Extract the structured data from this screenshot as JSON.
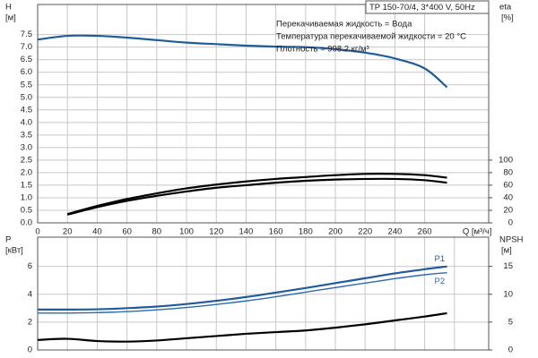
{
  "chart_data": [
    {
      "type": "line",
      "annotations": [
        "TP 150-70/4, 3*400 V, 50Hz",
        "Перекачиваемая жидкость = Вода",
        "Температура перекачиваемой жидкости = 20 °C",
        "Плотность = 998.2 кг/м³"
      ],
      "y_label": "H",
      "y_unit": "[м]",
      "y2_label": "eta",
      "y2_unit": "[%]",
      "x_label": "Q [м³/ч]",
      "x": [
        0,
        20,
        40,
        60,
        80,
        100,
        120,
        140,
        160,
        180,
        200,
        220,
        240,
        260,
        275
      ],
      "xlim": [
        0,
        303
      ],
      "xticks": [
        0,
        20,
        40,
        60,
        80,
        100,
        120,
        140,
        160,
        180,
        200,
        220,
        240,
        260
      ],
      "ylim": [
        0,
        8.7
      ],
      "yticks": [
        {
          "value": 0,
          "label": "0.0"
        },
        0.5,
        {
          "value": 1,
          "label": "1.0"
        },
        1.5,
        {
          "value": 2,
          "label": "2.0"
        },
        2.5,
        {
          "value": 3,
          "label": "3.0"
        },
        3.5,
        {
          "value": 4,
          "label": "4.0"
        },
        4.5,
        {
          "value": 5,
          "label": "5.0"
        },
        5.5,
        {
          "value": 6,
          "label": "6.0"
        },
        6.5,
        {
          "value": 7,
          "label": "7.0"
        },
        7.5
      ],
      "y2lim": [
        0,
        348
      ],
      "y2ticks": [
        0,
        20,
        40,
        60,
        80,
        100
      ],
      "grid": true,
      "series": [
        {
          "color": "#1f5c99",
          "values": [
            7.3,
            7.45,
            7.45,
            7.38,
            7.28,
            7.18,
            7.12,
            7.06,
            7.02,
            7.0,
            6.92,
            6.78,
            6.55,
            6.15,
            5.4
          ]
        },
        {
          "color": "#000000",
          "axis": "y2",
          "values": [
            null,
            14,
            27,
            38,
            47,
            55,
            61,
            66,
            70,
            73,
            76,
            78,
            78,
            76,
            72
          ]
        },
        {
          "color": "#000000",
          "axis": "y2",
          "values": [
            null,
            13,
            25,
            35,
            43,
            50,
            56,
            60,
            64,
            67,
            69,
            70,
            70,
            68,
            64
          ]
        }
      ]
    },
    {
      "type": "line",
      "y_label": "P",
      "y_unit": "[кВт]",
      "y2_label": "NPSH",
      "y2_unit": "[м]",
      "x": [
        0,
        20,
        40,
        60,
        80,
        100,
        120,
        140,
        160,
        180,
        200,
        220,
        240,
        260,
        275
      ],
      "xlim": [
        0,
        303
      ],
      "xticks": [
        0,
        20,
        40,
        60,
        80,
        100,
        120,
        140,
        160,
        180,
        200,
        220,
        240,
        260,
        280
      ],
      "ylim": [
        0,
        8.1
      ],
      "yticks": [
        0,
        2,
        4,
        6
      ],
      "y2lim": [
        0,
        20.25
      ],
      "y2ticks": [
        0,
        5,
        10,
        15
      ],
      "grid": true,
      "series": [
        {
          "name": "P1",
          "color": "#1f5c99",
          "values": [
            2.9,
            2.9,
            2.92,
            3.0,
            3.12,
            3.3,
            3.53,
            3.8,
            4.12,
            4.45,
            4.8,
            5.15,
            5.5,
            5.8,
            6.0
          ]
        },
        {
          "name": "P2",
          "color": "#2a6ab0",
          "values": [
            2.65,
            2.65,
            2.68,
            2.75,
            2.88,
            3.05,
            3.27,
            3.52,
            3.82,
            4.15,
            4.48,
            4.8,
            5.12,
            5.4,
            5.55
          ]
        },
        {
          "color": "#000000",
          "axis": "y2",
          "values": [
            1.8,
            2.0,
            1.6,
            1.5,
            1.7,
            2.1,
            2.5,
            2.9,
            3.2,
            3.5,
            4.0,
            4.6,
            5.3,
            6.0,
            6.6
          ]
        }
      ]
    }
  ]
}
